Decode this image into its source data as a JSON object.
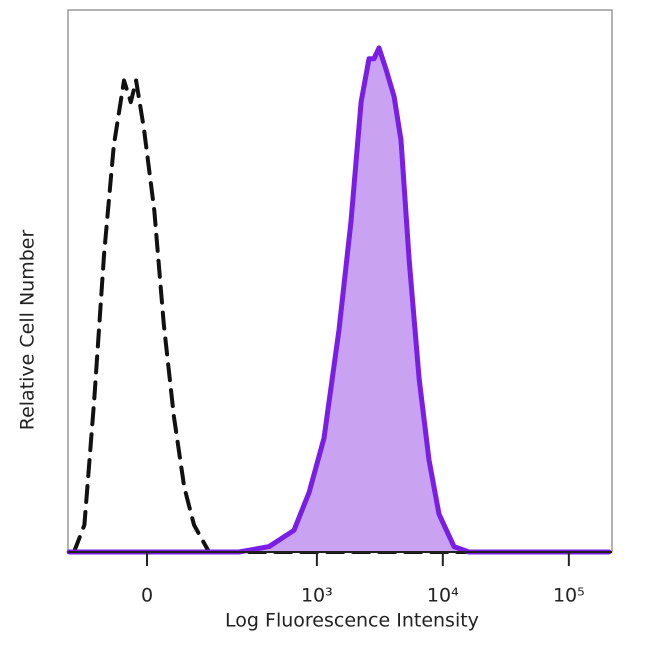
{
  "chart_data": {
    "type": "line",
    "xlabel": "Log Fluorescence Intensity",
    "ylabel": "Relative Cell Number",
    "xscale": "biexponential",
    "xlim": [
      -180,
      220000
    ],
    "ylim": [
      0,
      100
    ],
    "xticks": [
      0,
      {
        "value": 1000,
        "label": "10³"
      },
      {
        "value": 10000,
        "label": "10⁴"
      },
      {
        "value": 100000,
        "label": "10⁵"
      }
    ],
    "series": [
      {
        "color": "#111111",
        "line_style": "dashed",
        "fill": null,
        "x": [
          -159,
          -127,
          -101,
          -78,
          -58,
          -39,
          -27,
          -18,
          -5,
          12,
          28,
          46,
          66,
          87,
          125,
          173000
        ],
        "values": [
          0,
          5,
          28,
          55,
          75,
          87,
          83,
          87,
          78,
          63,
          42,
          25,
          12,
          5,
          0,
          0
        ]
      },
      {
        "color": "#7a1ee6",
        "line_style": "solid",
        "fill": "#c9a3f2",
        "x": [
          -176,
          233,
          413,
          657,
          867,
          1140,
          1501,
          1869,
          2245,
          2597,
          2844,
          3117,
          3546,
          4104,
          4662,
          5400,
          6480,
          7776,
          9336,
          12280,
          16150,
          208000
        ],
        "values": [
          0,
          0,
          1,
          4,
          11,
          21,
          41,
          61,
          83,
          91,
          91,
          93,
          89,
          84,
          76,
          54,
          32,
          17,
          7,
          1,
          0,
          0
        ]
      }
    ]
  }
}
